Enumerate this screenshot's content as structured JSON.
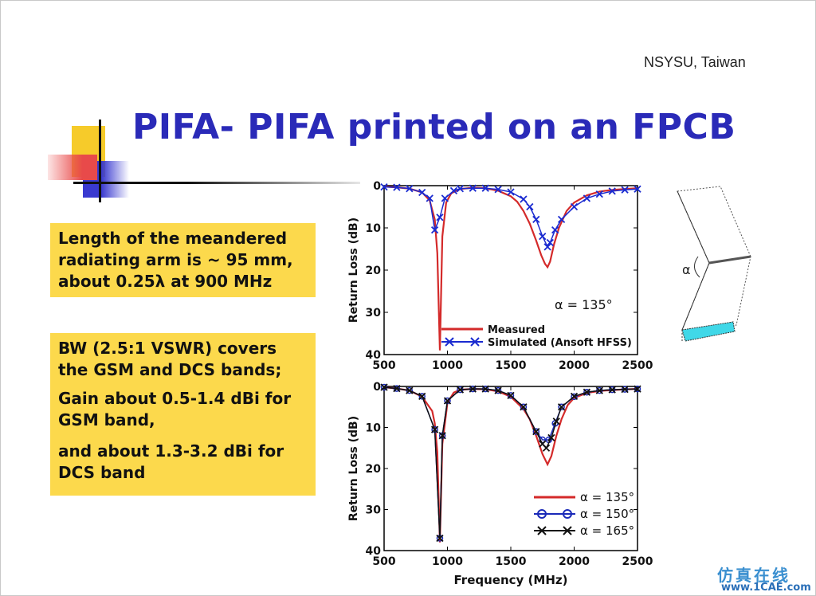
{
  "slide": {
    "institution": "NSYSU, Taiwan",
    "title": "PIFA- PIFA printed on an FPCB",
    "box1": {
      "lines": [
        "Length of the meandered",
        "radiating arm is ~ 95 mm,",
        "about 0.25λ at 900 MHz"
      ]
    },
    "box2": {
      "line1": "BW (2.5:1 VSWR) covers",
      "line2": "the GSM and DCS bands;",
      "line3": "Gain about 0.5-1.4 dBi for",
      "line4": "GSM band,",
      "line5": "and about 1.3-3.2 dBi for",
      "line6": "DCS band"
    },
    "inset_label": "α",
    "footer_logo": "仿真在线",
    "footer_site": "www.1CAE.com",
    "colors": {
      "title": "#2a2ab8",
      "box": "#fcd94c",
      "measured": "#d42a2a",
      "simulated": "#1a2ad0",
      "a135": "#d42a2a",
      "a150": "#1a2ab8",
      "a165": "#111111"
    }
  },
  "chart_data": [
    {
      "type": "line",
      "xlabel": "",
      "ylabel": "Return Loss (dB)",
      "xlim": [
        500,
        2500
      ],
      "ylim": [
        0,
        40
      ],
      "y_inverted": true,
      "xticks": [
        500,
        1000,
        1500,
        2000,
        2500
      ],
      "yticks": [
        0,
        10,
        20,
        30,
        40
      ],
      "annotation": "α = 135°",
      "legend_position": "bottom-right",
      "series": [
        {
          "name": "Measured",
          "marker": "none",
          "x": [
            500,
            600,
            700,
            800,
            860,
            900,
            920,
            940,
            960,
            990,
            1030,
            1100,
            1200,
            1300,
            1400,
            1500,
            1550,
            1600,
            1650,
            1700,
            1740,
            1770,
            1790,
            1810,
            1840,
            1880,
            1940,
            2000,
            2100,
            2200,
            2300,
            2400,
            2500
          ],
          "y": [
            0.2,
            0.4,
            0.7,
            1.6,
            3.5,
            8,
            16,
            39,
            12,
            4,
            1.8,
            0.8,
            0.5,
            0.6,
            1.2,
            2.5,
            3.8,
            6,
            9,
            13,
            16.5,
            18.5,
            19.3,
            18,
            14,
            10,
            6,
            4,
            2.3,
            1.4,
            1,
            0.8,
            0.6
          ]
        },
        {
          "name": "Simulated (Ansoft HFSS)",
          "marker": "x",
          "x": [
            500,
            600,
            700,
            800,
            860,
            900,
            940,
            980,
            1050,
            1100,
            1200,
            1300,
            1400,
            1500,
            1600,
            1650,
            1700,
            1750,
            1790,
            1810,
            1850,
            1900,
            2000,
            2100,
            2200,
            2300,
            2400,
            2500
          ],
          "y": [
            0.3,
            0.4,
            0.7,
            1.6,
            3,
            10.5,
            7.5,
            3,
            1.2,
            0.7,
            0.6,
            0.6,
            0.9,
            1.5,
            3.2,
            5,
            8,
            12,
            14.5,
            13.5,
            10.5,
            8,
            5,
            3,
            2,
            1.3,
            1,
            0.8
          ]
        }
      ]
    },
    {
      "type": "line",
      "xlabel": "Frequency (MHz)",
      "ylabel": "Return Loss (dB)",
      "xlim": [
        500,
        2500
      ],
      "ylim": [
        0,
        40
      ],
      "y_inverted": true,
      "xticks": [
        500,
        1000,
        1500,
        2000,
        2500
      ],
      "yticks": [
        0,
        10,
        20,
        30,
        40
      ],
      "legend_position": "bottom-right",
      "series": [
        {
          "name": "α = 135°",
          "marker": "none",
          "x": [
            500,
            600,
            700,
            800,
            880,
            900,
            920,
            940,
            960,
            1000,
            1050,
            1100,
            1200,
            1300,
            1400,
            1500,
            1600,
            1650,
            1700,
            1750,
            1790,
            1820,
            1860,
            1900,
            1950,
            2000,
            2100,
            2200,
            2300,
            2400,
            2500
          ],
          "y": [
            0.2,
            0.5,
            1,
            2.5,
            6,
            9,
            16,
            38,
            14,
            4,
            1.5,
            0.8,
            0.6,
            0.7,
            1.2,
            2.5,
            5.5,
            8,
            12,
            16.5,
            19,
            17,
            12,
            8,
            4.5,
            2.8,
            1.6,
            1.1,
            0.9,
            0.7,
            0.6
          ]
        },
        {
          "name": "α = 150°",
          "marker": "circle",
          "x": [
            500,
            600,
            700,
            800,
            900,
            940,
            960,
            1000,
            1100,
            1200,
            1300,
            1400,
            1500,
            1600,
            1700,
            1750,
            1800,
            1850,
            1900,
            2000,
            2100,
            2200,
            2300,
            2400,
            2500
          ],
          "y": [
            0.2,
            0.5,
            1,
            2.4,
            10.5,
            37,
            12,
            3.5,
            0.8,
            0.6,
            0.6,
            1,
            2.2,
            5,
            11,
            13,
            13,
            9,
            5,
            2.5,
            1.4,
            1,
            0.8,
            0.7,
            0.6
          ]
        },
        {
          "name": "α = 165°",
          "marker": "x",
          "x": [
            500,
            600,
            700,
            800,
            900,
            940,
            960,
            1000,
            1100,
            1200,
            1300,
            1400,
            1500,
            1600,
            1700,
            1750,
            1780,
            1820,
            1860,
            1900,
            2000,
            2100,
            2200,
            2300,
            2400,
            2500
          ],
          "y": [
            0.2,
            0.5,
            1,
            2.4,
            10.5,
            37,
            12,
            3.5,
            0.8,
            0.6,
            0.6,
            1,
            2.2,
            5,
            11,
            14,
            15,
            12.5,
            8.5,
            5,
            2.4,
            1.4,
            1,
            0.8,
            0.7,
            0.6
          ]
        }
      ]
    }
  ]
}
